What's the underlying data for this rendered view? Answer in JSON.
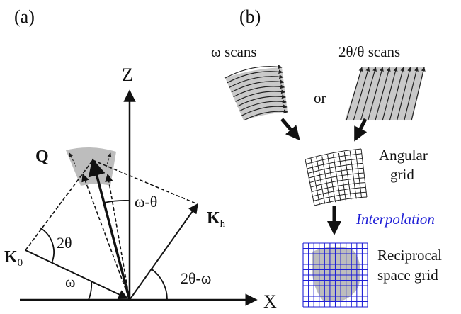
{
  "panel_a": {
    "label": "(a)",
    "axis_z": "Z",
    "axis_x": "X",
    "vector_q": "Q",
    "vector_k0": "K",
    "vector_k0_sub": "0",
    "vector_kh": "K",
    "vector_kh_sub": "h",
    "angle_2theta": "2θ",
    "angle_omega": "ω",
    "angle_omega_minus_theta": "ω-θ",
    "angle_2theta_minus_omega": "2θ-ω"
  },
  "panel_b": {
    "label": "(b)",
    "omega_scans": "ω scans",
    "two_theta_scans": "2θ/θ scans",
    "or": "or",
    "angular_grid_line1": "Angular",
    "angular_grid_line2": "grid",
    "interpolation": "Interpolation",
    "reciprocal_line1": "Reciprocal",
    "reciprocal_line2": "space grid"
  },
  "colors": {
    "ink": "#111111",
    "shade": "#bdbdbd",
    "light_shade": "#d4d4d4",
    "blue": "#1f1fd6"
  }
}
